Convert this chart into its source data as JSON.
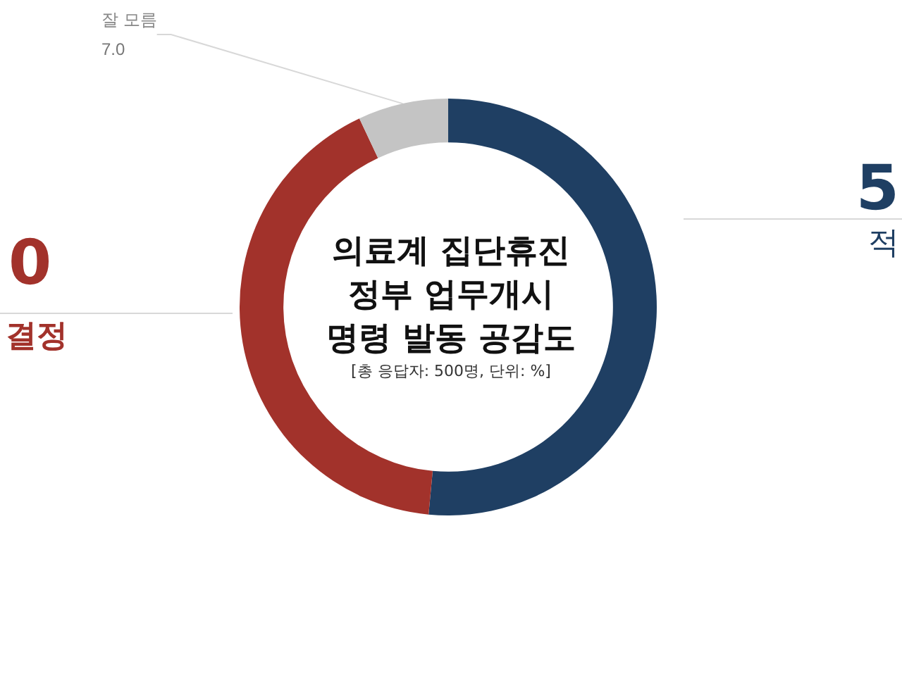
{
  "chart_data": {
    "type": "donut",
    "title": "의료계 집단휴진\n정부 업무개시\n명령 발동 공감도",
    "subtitle": "[총 응답자: 500명, 단위: %]",
    "categories": [
      null,
      null,
      "잘 모름"
    ],
    "values": [
      51.5,
      41.5,
      7.0
    ],
    "colors": [
      "#1f3f63",
      "#a2322b",
      "#c4c4c4"
    ],
    "value_labels": [
      null,
      null,
      "7.0"
    ],
    "annotations": [
      "5",
      "적",
      "0",
      "결정"
    ]
  }
}
